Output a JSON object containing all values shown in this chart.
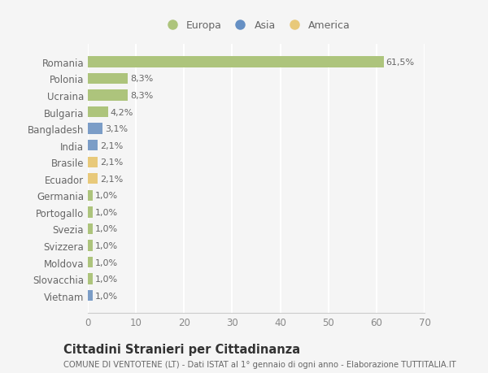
{
  "countries": [
    "Romania",
    "Polonia",
    "Ucraina",
    "Bulgaria",
    "Bangladesh",
    "India",
    "Brasile",
    "Ecuador",
    "Germania",
    "Portogallo",
    "Svezia",
    "Svizzera",
    "Moldova",
    "Slovacchia",
    "Vietnam"
  ],
  "values": [
    61.5,
    8.3,
    8.3,
    4.2,
    3.1,
    2.1,
    2.1,
    2.1,
    1.0,
    1.0,
    1.0,
    1.0,
    1.0,
    1.0,
    1.0
  ],
  "labels": [
    "61,5%",
    "8,3%",
    "8,3%",
    "4,2%",
    "3,1%",
    "2,1%",
    "2,1%",
    "2,1%",
    "1,0%",
    "1,0%",
    "1,0%",
    "1,0%",
    "1,0%",
    "1,0%",
    "1,0%"
  ],
  "continents": [
    "Europa",
    "Europa",
    "Europa",
    "Europa",
    "Asia",
    "Asia",
    "America",
    "America",
    "Europa",
    "Europa",
    "Europa",
    "Europa",
    "Europa",
    "Europa",
    "Asia"
  ],
  "bar_colors": {
    "Europa": "#adc47c",
    "Asia": "#7b9dc7",
    "America": "#e8c97a"
  },
  "legend_colors": {
    "Europa": "#adc47c",
    "Asia": "#6690c4",
    "America": "#e8c97a"
  },
  "xlim": [
    0,
    70
  ],
  "xticks": [
    0,
    10,
    20,
    30,
    40,
    50,
    60,
    70
  ],
  "title": "Cittadini Stranieri per Cittadinanza",
  "subtitle": "COMUNE DI VENTOTENE (LT) - Dati ISTAT al 1° gennaio di ogni anno - Elaborazione TUTTITALIA.IT",
  "bg_color": "#f5f5f5",
  "grid_color": "#ffffff",
  "bar_height": 0.65
}
